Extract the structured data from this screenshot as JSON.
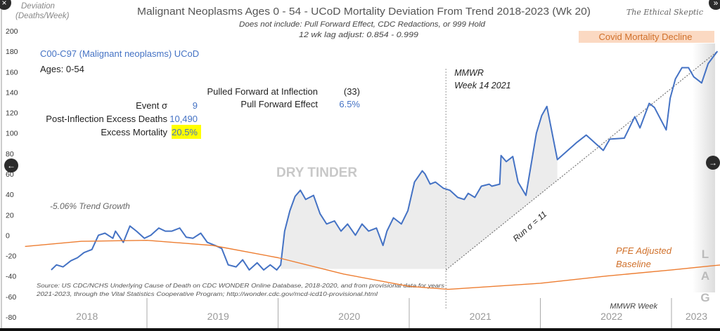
{
  "chart_data": {
    "type": "line",
    "title": "Malignant Neoplasms Ages 0 - 54 - UCoD Mortality Deviation From Trend  2018-2023 (Wk 20)",
    "subtitle_lines": [
      "Does not include: Pull Forward Effect,  CDC Redactions, or 999 Hold",
      "12 wk lag adjust: 0.854 - 0.999"
    ],
    "brand": "The Ethical Skeptic",
    "ylabel_lines": [
      "Deviation",
      "(Deaths/Week)"
    ],
    "xlabel": "MMWR Week",
    "ylim": [
      -80,
      200
    ],
    "yticks": [
      200,
      180,
      160,
      140,
      120,
      100,
      80,
      60,
      40,
      20,
      0,
      -20,
      -40,
      -60,
      -80
    ],
    "xlim": [
      2018.0,
      2023.38
    ],
    "year_labels": [
      "2018",
      "2019",
      "2020",
      "2021",
      "2022",
      "2023"
    ],
    "grid": false,
    "series": [
      {
        "name": "C00-C97 (Malignant neoplasms) UCoD",
        "color": "#4472c4",
        "points": [
          [
            2018.27,
            -34
          ],
          [
            2018.31,
            -29
          ],
          [
            2018.36,
            -31
          ],
          [
            2018.42,
            -25
          ],
          [
            2018.47,
            -22
          ],
          [
            2018.52,
            -17
          ],
          [
            2018.58,
            -14
          ],
          [
            2018.63,
            0
          ],
          [
            2018.68,
            2
          ],
          [
            2018.74,
            -3
          ],
          [
            2018.76,
            4
          ],
          [
            2018.82,
            -7
          ],
          [
            2018.87,
            9
          ],
          [
            2018.92,
            4
          ],
          [
            2018.98,
            -3
          ],
          [
            2019.03,
            0
          ],
          [
            2019.09,
            7
          ],
          [
            2019.14,
            4
          ],
          [
            2019.19,
            4
          ],
          [
            2019.25,
            7
          ],
          [
            2019.3,
            -2
          ],
          [
            2019.35,
            -3
          ],
          [
            2019.41,
            2
          ],
          [
            2019.46,
            -7
          ],
          [
            2019.52,
            -10
          ],
          [
            2019.57,
            -13
          ],
          [
            2019.62,
            -29
          ],
          [
            2019.68,
            -31
          ],
          [
            2019.73,
            -24
          ],
          [
            2019.78,
            -34
          ],
          [
            2019.84,
            -27
          ],
          [
            2019.89,
            -34
          ],
          [
            2019.94,
            -29
          ],
          [
            2019.99,
            -34
          ],
          [
            2020.02,
            -29
          ],
          [
            2020.05,
            4
          ],
          [
            2020.09,
            24
          ],
          [
            2020.13,
            38
          ],
          [
            2020.17,
            44
          ],
          [
            2020.21,
            35
          ],
          [
            2020.27,
            39
          ],
          [
            2020.32,
            21
          ],
          [
            2020.37,
            11
          ],
          [
            2020.43,
            14
          ],
          [
            2020.48,
            4
          ],
          [
            2020.53,
            11
          ],
          [
            2020.59,
            0
          ],
          [
            2020.64,
            11
          ],
          [
            2020.69,
            4
          ],
          [
            2020.75,
            7
          ],
          [
            2020.8,
            -10
          ],
          [
            2020.83,
            4
          ],
          [
            2020.88,
            17
          ],
          [
            2020.94,
            11
          ],
          [
            2020.99,
            24
          ],
          [
            2021.04,
            52
          ],
          [
            2021.1,
            63
          ],
          [
            2021.12,
            60
          ],
          [
            2021.16,
            50
          ],
          [
            2021.2,
            52
          ],
          [
            2021.26,
            46
          ],
          [
            2021.31,
            44
          ],
          [
            2021.37,
            37
          ],
          [
            2021.42,
            35
          ],
          [
            2021.45,
            41
          ],
          [
            2021.5,
            37
          ],
          [
            2021.55,
            48
          ],
          [
            2021.61,
            50
          ],
          [
            2021.63,
            48
          ],
          [
            2021.69,
            50
          ],
          [
            2021.7,
            78
          ],
          [
            2021.74,
            72
          ],
          [
            2021.79,
            77
          ],
          [
            2021.83,
            52
          ],
          [
            2021.89,
            39
          ],
          [
            2021.97,
            100
          ],
          [
            2022.01,
            117
          ],
          [
            2022.05,
            126
          ],
          [
            2022.13,
            74
          ],
          [
            2022.28,
            91
          ],
          [
            2022.35,
            98
          ],
          [
            2022.48,
            83
          ],
          [
            2022.53,
            94
          ],
          [
            2022.64,
            95
          ],
          [
            2022.72,
            116
          ],
          [
            2022.76,
            105
          ],
          [
            2022.83,
            129
          ],
          [
            2022.87,
            125
          ],
          [
            2022.96,
            103
          ],
          [
            2022.99,
            134
          ],
          [
            2023.03,
            153
          ],
          [
            2023.08,
            164
          ],
          [
            2023.13,
            164
          ],
          [
            2023.17,
            155
          ],
          [
            2023.23,
            149
          ],
          [
            2023.28,
            168
          ],
          [
            2023.35,
            180
          ]
        ]
      },
      {
        "name": "PFE Adjusted Baseline",
        "color": "#ed7d31",
        "points": [
          [
            2018.07,
            -11
          ],
          [
            2018.5,
            -6
          ],
          [
            2019.0,
            -5
          ],
          [
            2019.5,
            -10
          ],
          [
            2020.0,
            -22
          ],
          [
            2020.5,
            -38
          ],
          [
            2021.0,
            -50
          ],
          [
            2021.3,
            -53
          ],
          [
            2022.0,
            -47
          ],
          [
            2022.5,
            -40
          ],
          [
            2023.0,
            -34
          ],
          [
            2023.38,
            -29
          ]
        ]
      }
    ],
    "trend_line": {
      "label": "Run σ = 11",
      "points": [
        [
          2021.28,
          -34
        ],
        [
          2023.35,
          180
        ]
      ]
    },
    "inflection_marker": {
      "x": 2021.28,
      "label_lines": [
        "MMWR",
        "Week 14 2021"
      ]
    },
    "annotations": {
      "series_label": "C00-C97 (Malignant neoplasms) UCoD",
      "ages": "Ages: 0-54",
      "stats_left": [
        {
          "label": "Event σ",
          "value": "9"
        },
        {
          "label": "Post-Inflection Excess Deaths",
          "value": "10,490"
        },
        {
          "label": "Excess Mortality",
          "value": "20.5%",
          "highlight": "#ffff00"
        }
      ],
      "stats_right": [
        {
          "label": "Pulled Forward at Inflection",
          "value": "(33)"
        },
        {
          "label": "Pull Forward Effect",
          "value": "6.5%"
        }
      ],
      "dry_tinder": "DRY TINDER",
      "trend_growth": "-5.06% Trend Growth",
      "covid_decline": "Covid Mortality Decline",
      "pfe_lines": [
        "PFE Adjusted",
        "Baseline"
      ],
      "lag_letters": [
        "L",
        "A",
        "G"
      ],
      "source_lines": [
        "Source: US CDC/NCHS Underlying Cause of Death on CDC WONDER Online Database, 2018-2020, and from provisional data for years",
        "2021-2023, through the Vital Statistics Cooperative Program; http://wonder.cdc.gov/mcd-icd10-provisional.html"
      ]
    }
  },
  "nav": {
    "close": "×",
    "prev": "←",
    "next": "→",
    "expand": "»"
  }
}
